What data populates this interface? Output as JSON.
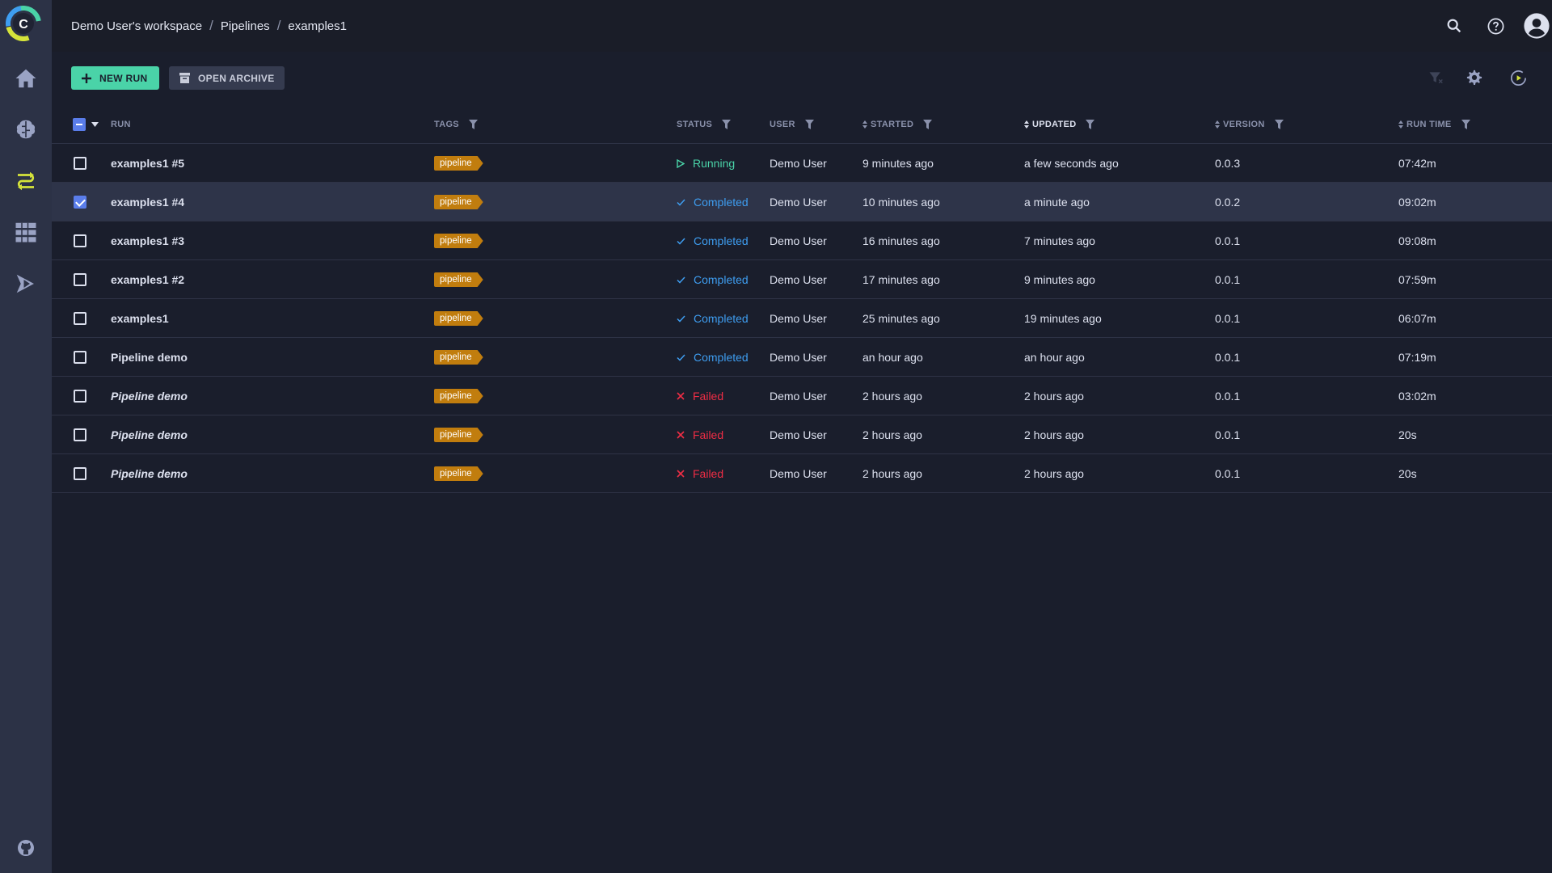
{
  "breadcrumb": {
    "workspace": "Demo User's workspace",
    "project": "Pipelines",
    "pipeline": "examples1"
  },
  "toolbar": {
    "new_run_label": "NEW RUN",
    "open_archive_label": "OPEN ARCHIVE"
  },
  "columns": {
    "run": "RUN",
    "tags": "TAGS",
    "status": "STATUS",
    "user": "USER",
    "started": "STARTED",
    "updated": "UPDATED",
    "version": "VERSION",
    "run_time": "RUN TIME"
  },
  "rows": [
    {
      "name": "examples1 #5",
      "tag": "pipeline",
      "status": "Running",
      "user": "Demo User",
      "started": "9 minutes ago",
      "updated": "a few seconds ago",
      "version": "0.0.3",
      "run_time": "07:42m"
    },
    {
      "name": "examples1 #4",
      "tag": "pipeline",
      "status": "Completed",
      "user": "Demo User",
      "started": "10 minutes ago",
      "updated": "a minute ago",
      "version": "0.0.2",
      "run_time": "09:02m"
    },
    {
      "name": "examples1 #3",
      "tag": "pipeline",
      "status": "Completed",
      "user": "Demo User",
      "started": "16 minutes ago",
      "updated": "7 minutes ago",
      "version": "0.0.1",
      "run_time": "09:08m"
    },
    {
      "name": "examples1 #2",
      "tag": "pipeline",
      "status": "Completed",
      "user": "Demo User",
      "started": "17 minutes ago",
      "updated": "9 minutes ago",
      "version": "0.0.1",
      "run_time": "07:59m"
    },
    {
      "name": "examples1",
      "tag": "pipeline",
      "status": "Completed",
      "user": "Demo User",
      "started": "25 minutes ago",
      "updated": "19 minutes ago",
      "version": "0.0.1",
      "run_time": "06:07m"
    },
    {
      "name": "Pipeline demo",
      "tag": "pipeline",
      "status": "Completed",
      "user": "Demo User",
      "started": "an hour ago",
      "updated": "an hour ago",
      "version": "0.0.1",
      "run_time": "07:19m"
    },
    {
      "name": "Pipeline demo",
      "tag": "pipeline",
      "status": "Failed",
      "user": "Demo User",
      "started": "2 hours ago",
      "updated": "2 hours ago",
      "version": "0.0.1",
      "run_time": "03:02m"
    },
    {
      "name": "Pipeline demo",
      "tag": "pipeline",
      "status": "Failed",
      "user": "Demo User",
      "started": "2 hours ago",
      "updated": "2 hours ago",
      "version": "0.0.1",
      "run_time": "20s"
    },
    {
      "name": "Pipeline demo",
      "tag": "pipeline",
      "status": "Failed",
      "user": "Demo User",
      "started": "2 hours ago",
      "updated": "2 hours ago",
      "version": "0.0.1",
      "run_time": "20s"
    }
  ],
  "row_states": {
    "selected_index": 1,
    "italic_indices": [
      6,
      7,
      8
    ]
  },
  "colors": {
    "accent": "#4ad3a8",
    "running": "#4ad3a8",
    "completed": "#3e9df0",
    "failed": "#ef2d45",
    "tag_bg": "#c17d0e",
    "checkbox": "#5a7dea",
    "active_nav": "#d5e33a"
  },
  "icons": {
    "sidebar": [
      "home-icon",
      "brain-icon",
      "pipelines-icon",
      "datasets-icon",
      "deploy-icon",
      "github-icon"
    ],
    "header": [
      "search-icon",
      "help-icon",
      "user-avatar-icon"
    ],
    "toolbar": [
      "filter-off-icon",
      "settings-icon",
      "auto-refresh-icon"
    ]
  }
}
